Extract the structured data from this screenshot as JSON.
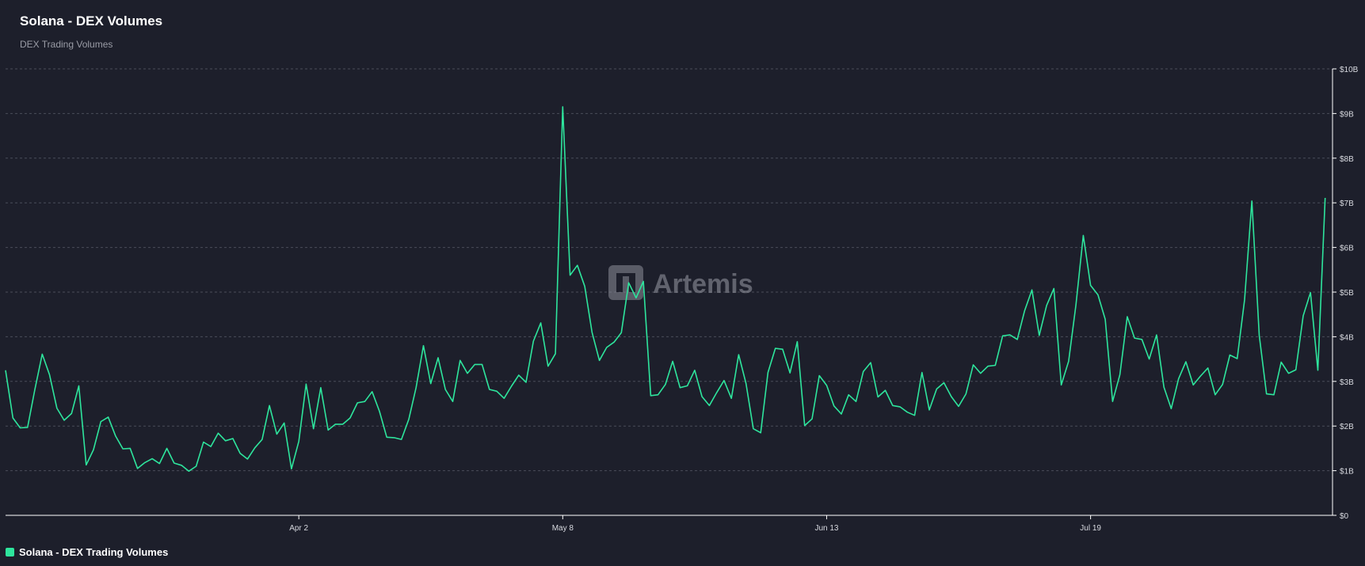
{
  "colors": {
    "background": "#1d1f2b",
    "line": "#2ee59d",
    "grid": "#4a4d5a",
    "axis": "#ffffff",
    "tick_text": "#d8dae0",
    "watermark": "#9a9ca6"
  },
  "watermark": {
    "text": "Artemis",
    "icon": "artemis-logo-icon"
  },
  "legend": {
    "label": "Solana - DEX Trading Volumes"
  },
  "chart_data": {
    "type": "line",
    "title": "Solana - DEX Volumes",
    "subtitle": "DEX Trading Volumes",
    "xlabel": "",
    "ylabel": "",
    "y_ticks": [
      {
        "value": 0,
        "label": "$0"
      },
      {
        "value": 1,
        "label": "$1B"
      },
      {
        "value": 2,
        "label": "$2B"
      },
      {
        "value": 3,
        "label": "$3B"
      },
      {
        "value": 4,
        "label": "$4B"
      },
      {
        "value": 5,
        "label": "$5B"
      },
      {
        "value": 6,
        "label": "$6B"
      },
      {
        "value": 7,
        "label": "$7B"
      },
      {
        "value": 8,
        "label": "$8B"
      },
      {
        "value": 9,
        "label": "$9B"
      },
      {
        "value": 10,
        "label": "$10B"
      }
    ],
    "ylim": [
      0,
      10
    ],
    "y_unit": "$B",
    "x_ticks": [
      {
        "index": 40,
        "label": "Apr 2"
      },
      {
        "index": 76,
        "label": "May 8"
      },
      {
        "index": 112,
        "label": "Jun 13"
      },
      {
        "index": 148,
        "label": "Jul 19"
      }
    ],
    "x_range": [
      0,
      181
    ],
    "grid": "horizontal dashed",
    "legend_position": "bottom-left",
    "series": [
      {
        "name": "Solana - DEX Trading Volumes",
        "values": [
          3.25,
          2.18,
          1.96,
          1.97,
          2.82,
          3.61,
          3.15,
          2.4,
          2.13,
          2.28,
          2.9,
          1.13,
          1.47,
          2.1,
          2.2,
          1.78,
          1.49,
          1.5,
          1.05,
          1.18,
          1.27,
          1.16,
          1.5,
          1.17,
          1.12,
          0.99,
          1.1,
          1.64,
          1.54,
          1.84,
          1.67,
          1.72,
          1.39,
          1.26,
          1.51,
          1.7,
          2.46,
          1.82,
          2.07,
          1.04,
          1.66,
          2.94,
          1.94,
          2.86,
          1.91,
          2.04,
          2.04,
          2.18,
          2.52,
          2.55,
          2.77,
          2.33,
          1.75,
          1.74,
          1.7,
          2.15,
          2.86,
          3.8,
          2.95,
          3.53,
          2.82,
          2.55,
          3.47,
          3.18,
          3.38,
          3.38,
          2.82,
          2.78,
          2.62,
          2.89,
          3.14,
          2.98,
          3.9,
          4.31,
          3.34,
          3.62,
          9.15,
          5.38,
          5.6,
          5.13,
          4.1,
          3.47,
          3.76,
          3.88,
          4.09,
          5.21,
          4.87,
          5.24,
          2.68,
          2.7,
          2.93,
          3.45,
          2.86,
          2.9,
          3.25,
          2.66,
          2.46,
          2.75,
          3.02,
          2.62,
          3.6,
          2.95,
          1.94,
          1.85,
          3.2,
          3.74,
          3.72,
          3.19,
          3.89,
          2.01,
          2.16,
          3.13,
          2.91,
          2.45,
          2.27,
          2.7,
          2.55,
          3.22,
          3.42,
          2.65,
          2.8,
          2.46,
          2.43,
          2.31,
          2.24,
          3.2,
          2.36,
          2.83,
          2.97,
          2.66,
          2.44,
          2.72,
          3.37,
          3.18,
          3.34,
          3.36,
          4.02,
          4.04,
          3.94,
          4.58,
          5.05,
          4.03,
          4.7,
          5.08,
          2.92,
          3.45,
          4.71,
          6.27,
          5.15,
          4.94,
          4.39,
          2.55,
          3.15,
          4.45,
          3.97,
          3.94,
          3.5,
          4.04,
          2.87,
          2.39,
          3.06,
          3.44,
          2.92,
          3.12,
          3.3,
          2.7,
          2.93,
          3.59,
          3.51,
          4.83,
          7.04,
          4.03,
          2.72,
          2.7,
          3.43,
          3.18,
          3.26,
          4.47,
          4.99,
          3.25,
          7.11
        ]
      }
    ]
  }
}
